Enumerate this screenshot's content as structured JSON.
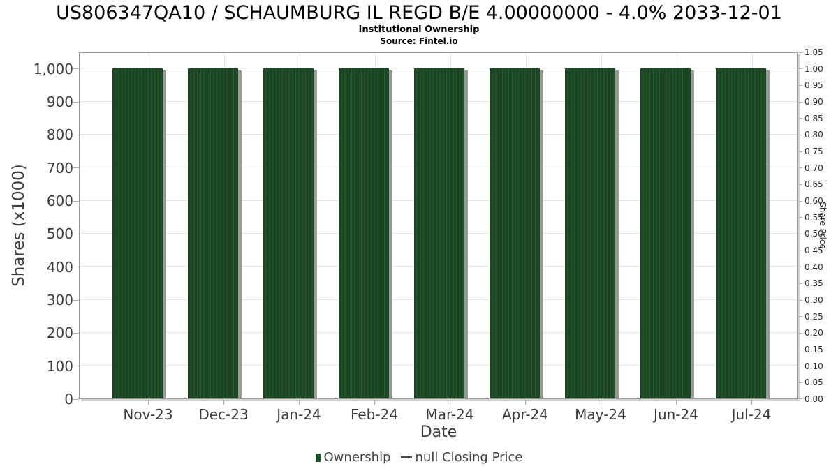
{
  "title": "US806347QA10 / SCHAUMBURG IL REGD B/E 4.00000000 - 4.0% 2033-12-01",
  "subtitle": "Institutional Ownership",
  "source": "Source: Fintel.io",
  "chart_data": {
    "type": "bar",
    "title": "US806347QA10 / SCHAUMBURG IL REGD B/E 4.00000000 - 4.0% 2033-12-01",
    "subtitle": "Institutional Ownership",
    "source": "Source: Fintel.io",
    "categories": [
      "Nov-23",
      "Dec-23",
      "Jan-24",
      "Feb-24",
      "Mar-24",
      "Apr-24",
      "May-24",
      "Jun-24",
      "Jul-24"
    ],
    "series": [
      {
        "name": "Ownership",
        "axis": "left",
        "values": [
          1000,
          1000,
          1000,
          1000,
          1000,
          1000,
          1000,
          1000,
          1000
        ]
      },
      {
        "name": "null Closing Price",
        "axis": "right",
        "values": [
          null,
          null,
          null,
          null,
          null,
          null,
          null,
          null,
          null
        ]
      }
    ],
    "xlabel": "Date",
    "ylabel": "Shares (x1000)",
    "ylabel_right": "Share Price",
    "ylim": [
      0,
      1050
    ],
    "y2lim": [
      0,
      1.05
    ],
    "yticks_left": [
      "0",
      "100",
      "200",
      "300",
      "400",
      "500",
      "600",
      "700",
      "800",
      "900",
      "1,000"
    ],
    "yticks_right": [
      "0.00",
      "0.05",
      "0.10",
      "0.15",
      "0.20",
      "0.25",
      "0.30",
      "0.35",
      "0.40",
      "0.45",
      "0.50",
      "0.55",
      "0.60",
      "0.65",
      "0.70",
      "0.75",
      "0.80",
      "0.85",
      "0.90",
      "0.95",
      "1.00",
      "1.05"
    ],
    "grid": true,
    "legend_position": "bottom",
    "colors": {
      "bar": "#1a4522",
      "bar_stripe": "#2d5734",
      "bar_shadow": "#9a9a9a",
      "grid": "#e3e3e3",
      "border": "#999999",
      "legend_square": "#1d4a26",
      "legend_dash": "#4a4a4a"
    }
  },
  "legend": {
    "items": [
      {
        "label": "Ownership",
        "marker": "square",
        "color": "#1d4a26"
      },
      {
        "label": "null Closing Price",
        "marker": "dash",
        "color": "#4a4a4a"
      }
    ]
  }
}
